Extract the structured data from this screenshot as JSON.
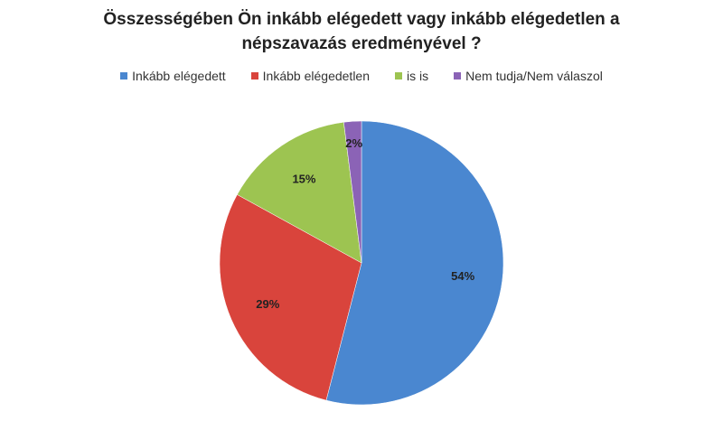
{
  "chart_data": {
    "type": "pie",
    "title": "Összességében Ön inkább elégedett vagy inkább elégedetlen a népszavazás eredményével ?",
    "categories": [
      "Inkább elégedett",
      "Inkább elégedetlen",
      "is is",
      "Nem tudja/Nem válaszol"
    ],
    "values": [
      54,
      29,
      15,
      2
    ],
    "labels": [
      "54%",
      "29%",
      "15%",
      "2%"
    ],
    "colors": [
      "#4a87d0",
      "#d9443c",
      "#9dc451",
      "#8b63b6"
    ],
    "legend_position": "top"
  }
}
